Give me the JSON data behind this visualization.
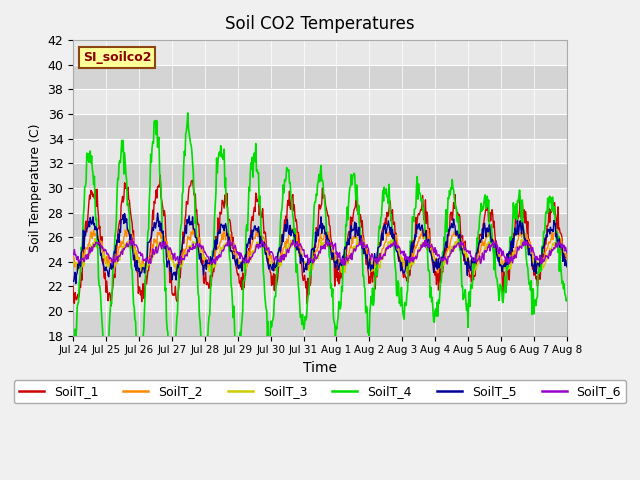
{
  "title": "Soil CO2 Temperatures",
  "xlabel": "Time",
  "ylabel": "Soil Temperature (C)",
  "ylim": [
    18,
    42
  ],
  "label_text": "SI_soilco2",
  "bg_color": "#e8e8e8",
  "line_colors": {
    "SoilT_1": "#cc0000",
    "SoilT_2": "#ff8800",
    "SoilT_3": "#cccc00",
    "SoilT_4": "#00dd00",
    "SoilT_5": "#000099",
    "SoilT_6": "#9900cc"
  },
  "xtick_labels": [
    "Jul 24",
    "Jul 25",
    "Jul 26",
    "Jul 27",
    "Jul 28",
    "Jul 29",
    "Jul 30",
    "Jul 31",
    "Aug 1",
    "Aug 2",
    "Aug 3",
    "Aug 4",
    "Aug 5",
    "Aug 6",
    "Aug 7",
    "Aug 8"
  ],
  "n_days": 15,
  "pts_per_day": 48
}
